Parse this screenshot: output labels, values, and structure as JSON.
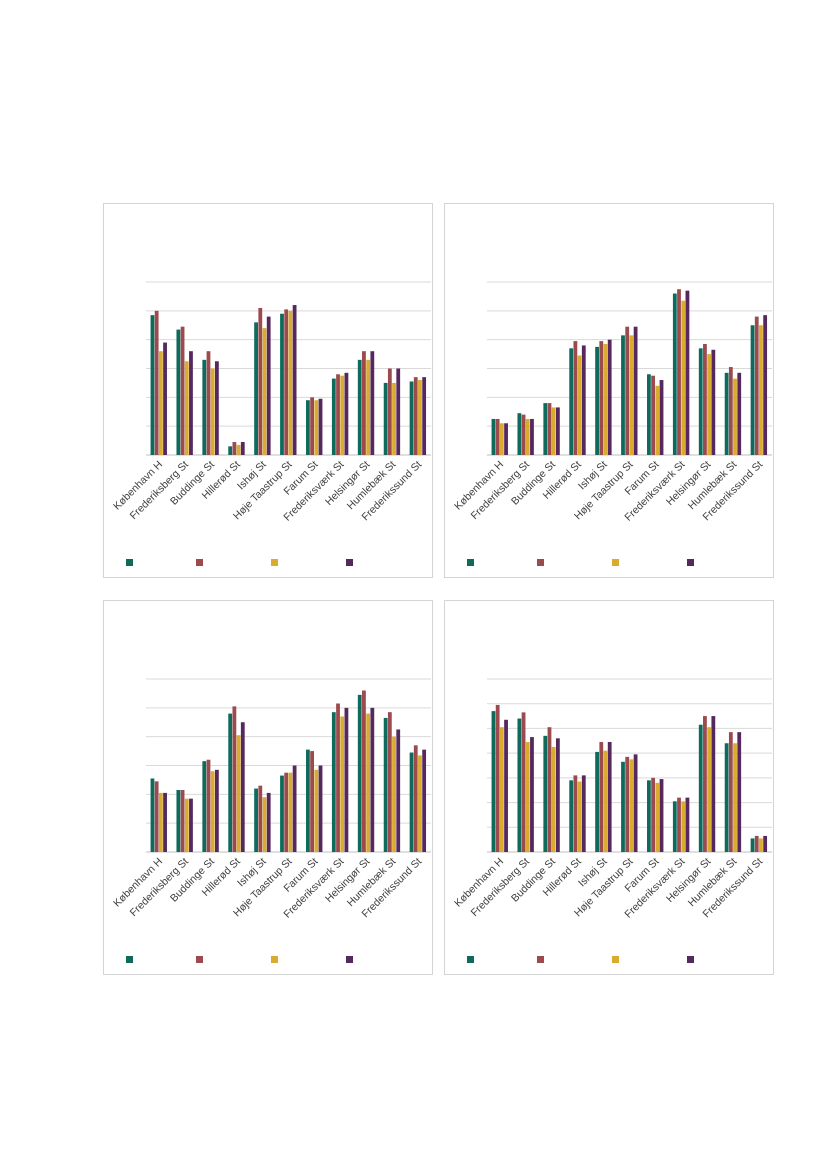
{
  "colors": [
    "#0e6b5c",
    "#9b4a4e",
    "#d9ab2f",
    "#55285e"
  ],
  "chart_data": [
    {
      "type": "bar",
      "categories": [
        "København H",
        "Frederiksberg St",
        "Buddinge St",
        "Hillerød St",
        "Ishøj St",
        "Høje Taastrup St",
        "Farum St",
        "Frederiksværk St",
        "Helsingør St",
        "Humlebæk St",
        "Frederikssund St"
      ],
      "ylim": [
        0,
        6
      ],
      "grid": true,
      "legend": "bottom",
      "series": [
        {
          "values": [
            4.85,
            4.35,
            3.3,
            0.3,
            4.6,
            4.9,
            1.9,
            2.65,
            3.3,
            2.5,
            2.55
          ]
        },
        {
          "values": [
            5.0,
            4.45,
            3.6,
            0.45,
            5.1,
            5.05,
            2.0,
            2.8,
            3.6,
            3.0,
            2.7
          ]
        },
        {
          "values": [
            3.6,
            3.25,
            3.0,
            0.35,
            4.4,
            5.0,
            1.9,
            2.75,
            3.3,
            2.5,
            2.6
          ]
        },
        {
          "values": [
            3.9,
            3.6,
            3.25,
            0.45,
            4.8,
            5.2,
            1.95,
            2.85,
            3.6,
            3.0,
            2.7
          ]
        }
      ]
    },
    {
      "type": "bar",
      "categories": [
        "København H",
        "Frederiksberg St",
        "Buddinge St",
        "Hillerød St",
        "Ishøj St",
        "Høje Taastrup St",
        "Farum St",
        "Frederiksværk St",
        "Helsingør St",
        "Humlebæk St",
        "Frederikssund St"
      ],
      "ylim": [
        0,
        6
      ],
      "grid": true,
      "legend": "bottom",
      "series": [
        {
          "values": [
            1.25,
            1.45,
            1.8,
            3.7,
            3.75,
            4.15,
            2.8,
            5.6,
            3.7,
            2.85,
            4.5
          ]
        },
        {
          "values": [
            1.25,
            1.4,
            1.8,
            3.95,
            3.95,
            4.45,
            2.75,
            5.75,
            3.85,
            3.05,
            4.8
          ]
        },
        {
          "values": [
            1.1,
            1.25,
            1.65,
            3.45,
            3.85,
            4.15,
            2.4,
            5.35,
            3.5,
            2.65,
            4.5
          ]
        },
        {
          "values": [
            1.1,
            1.25,
            1.65,
            3.8,
            4.0,
            4.45,
            2.6,
            5.7,
            3.65,
            2.85,
            4.85
          ]
        }
      ]
    },
    {
      "type": "bar",
      "categories": [
        "København H",
        "Frederiksberg St",
        "Buddinge St",
        "Hillerød St",
        "Ishøj St",
        "Høje Taastrup St",
        "Farum St",
        "Frederiksværk St",
        "Helsingør St",
        "Humlebæk St",
        "Frederikssund St"
      ],
      "ylim": [
        0,
        6
      ],
      "grid": true,
      "legend": "bottom",
      "series": [
        {
          "values": [
            2.55,
            2.15,
            3.15,
            4.8,
            2.2,
            2.65,
            3.55,
            4.85,
            5.45,
            4.65,
            3.45
          ]
        },
        {
          "values": [
            2.45,
            2.15,
            3.2,
            5.05,
            2.3,
            2.75,
            3.5,
            5.15,
            5.6,
            4.85,
            3.7
          ]
        },
        {
          "values": [
            2.05,
            1.85,
            2.8,
            4.05,
            1.9,
            2.75,
            2.85,
            4.7,
            4.8,
            4.0,
            3.35
          ]
        },
        {
          "values": [
            2.05,
            1.85,
            2.85,
            4.5,
            2.05,
            3.0,
            3.0,
            5.0,
            5.0,
            4.25,
            3.55
          ]
        }
      ]
    },
    {
      "type": "bar",
      "categories": [
        "København H",
        "Frederiksberg St",
        "Buddinge St",
        "Hillerød St",
        "Ishøj St",
        "Høje Taastrup St",
        "Farum St",
        "Frederiksværk St",
        "Helsingør St",
        "Humlebæk St",
        "Frederikssund St"
      ],
      "ylim": [
        0,
        7
      ],
      "grid": true,
      "legend": "bottom",
      "series": [
        {
          "values": [
            5.7,
            5.4,
            4.7,
            2.9,
            4.05,
            3.65,
            2.9,
            2.05,
            5.15,
            4.4,
            0.55
          ]
        },
        {
          "values": [
            5.95,
            5.65,
            5.05,
            3.1,
            4.45,
            3.85,
            3.0,
            2.2,
            5.5,
            4.85,
            0.65
          ]
        },
        {
          "values": [
            5.05,
            4.45,
            4.25,
            2.85,
            4.1,
            3.75,
            2.8,
            2.05,
            5.05,
            4.4,
            0.55
          ]
        },
        {
          "values": [
            5.35,
            4.65,
            4.6,
            3.1,
            4.45,
            3.95,
            2.95,
            2.2,
            5.5,
            4.85,
            0.65
          ]
        }
      ]
    }
  ]
}
